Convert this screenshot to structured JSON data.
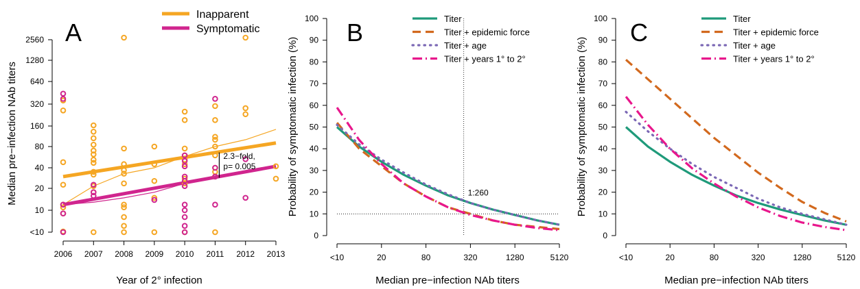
{
  "chart_data": [
    {
      "panel": "A",
      "type": "scatter",
      "xlabel": "Year of 2° infection",
      "ylabel": "Median pre−infection NAb titers",
      "x_ticks": [
        "2006",
        "2007",
        "2008",
        "2009",
        "2010",
        "2011",
        "2012",
        "2013"
      ],
      "y_ticks": [
        "<10",
        "10",
        "20",
        "40",
        "80",
        "160",
        "320",
        "640",
        "1280",
        "2560"
      ],
      "xlim": [
        2006,
        2013
      ],
      "legend_position": "top-right",
      "colors": {
        "inapparent": "#F5A623",
        "symptomatic": "#D0258E"
      },
      "series": [
        {
          "name": "Inapparent",
          "points": [
            [
              2006,
              5
            ],
            [
              2006,
              9
            ],
            [
              2006,
              11
            ],
            [
              2006,
              12
            ],
            [
              2006,
              23
            ],
            [
              2006,
              48
            ],
            [
              2006,
              260
            ],
            [
              2006,
              360
            ],
            [
              2007,
              "<10"
            ],
            [
              2007,
              18
            ],
            [
              2007,
              22
            ],
            [
              2007,
              32
            ],
            [
              2007,
              35
            ],
            [
              2007,
              47
            ],
            [
              2007,
              52
            ],
            [
              2007,
              62
            ],
            [
              2007,
              70
            ],
            [
              2007,
              85
            ],
            [
              2007,
              105
            ],
            [
              2007,
              130
            ],
            [
              2007,
              160
            ],
            [
              2008,
              "<10"
            ],
            [
              2008,
              6
            ],
            [
              2008,
              8
            ],
            [
              2008,
              11
            ],
            [
              2008,
              12
            ],
            [
              2008,
              24
            ],
            [
              2008,
              33
            ],
            [
              2008,
              37
            ],
            [
              2008,
              45
            ],
            [
              2008,
              75
            ],
            [
              2008,
              2800
            ],
            [
              2009,
              "<10"
            ],
            [
              2009,
              15
            ],
            [
              2009,
              26
            ],
            [
              2009,
              45
            ],
            [
              2009,
              80
            ],
            [
              2010,
              "<10"
            ],
            [
              2010,
              24
            ],
            [
              2010,
              28
            ],
            [
              2010,
              45
            ],
            [
              2010,
              52
            ],
            [
              2010,
              60
            ],
            [
              2010,
              75
            ],
            [
              2010,
              190
            ],
            [
              2010,
              250
            ],
            [
              2011,
              "<10"
            ],
            [
              2011,
              30
            ],
            [
              2011,
              35
            ],
            [
              2011,
              40
            ],
            [
              2011,
              60
            ],
            [
              2011,
              80
            ],
            [
              2011,
              100
            ],
            [
              2011,
              110
            ],
            [
              2011,
              190
            ],
            [
              2011,
              300
            ],
            [
              2012,
              230
            ],
            [
              2012,
              280
            ],
            [
              2012,
              2800
            ],
            [
              2013,
              28
            ],
            [
              2013,
              42
            ]
          ],
          "fit_line": [
            [
              2006,
              30
            ],
            [
              2013,
              90
            ]
          ],
          "trend_line": [
            [
              2006,
              12
            ],
            [
              2007,
              22
            ],
            [
              2008,
              33
            ],
            [
              2009,
              40
            ],
            [
              2010,
              58
            ],
            [
              2011,
              80
            ],
            [
              2012,
              100
            ],
            [
              2013,
              140
            ]
          ]
        },
        {
          "name": "Symptomatic",
          "points": [
            [
              2006,
              "<10"
            ],
            [
              2006,
              9
            ],
            [
              2006,
              12
            ],
            [
              2006,
              380
            ],
            [
              2006,
              450
            ],
            [
              2007,
              16
            ],
            [
              2007,
              18
            ],
            [
              2007,
              23
            ],
            [
              2009,
              14
            ],
            [
              2010,
              "<10"
            ],
            [
              2010,
              6
            ],
            [
              2010,
              8
            ],
            [
              2010,
              10
            ],
            [
              2010,
              12
            ],
            [
              2010,
              22
            ],
            [
              2010,
              26
            ],
            [
              2010,
              30
            ],
            [
              2010,
              42
            ],
            [
              2010,
              50
            ],
            [
              2010,
              60
            ],
            [
              2011,
              12
            ],
            [
              2011,
              30
            ],
            [
              2011,
              40
            ],
            [
              2011,
              380
            ],
            [
              2012,
              15
            ],
            [
              2012,
              53
            ]
          ],
          "fit_line": [
            [
              2006,
              12
            ],
            [
              2013,
              42
            ]
          ],
          "trend_line": [
            [
              2006,
              12
            ],
            [
              2007,
              13
            ],
            [
              2008,
              15
            ],
            [
              2009,
              18
            ],
            [
              2010,
              24
            ],
            [
              2011,
              30
            ],
            [
              2012,
              36
            ],
            [
              2013,
              42
            ]
          ]
        }
      ],
      "annotation": {
        "lines": [
          "2.3−fold,",
          "p= 0.005"
        ],
        "x": 2011,
        "y_from": 29,
        "y_to": 66
      }
    },
    {
      "panel": "B",
      "type": "line",
      "xlabel": "Median pre−infection NAb titers",
      "ylabel": "Probability of symptomatic infection (%)",
      "x_ticks": [
        "<10",
        "20",
        "80",
        "320",
        "1280",
        "5120"
      ],
      "ylim": [
        0,
        100
      ],
      "y_ticks": [
        0,
        10,
        20,
        30,
        40,
        50,
        60,
        70,
        80,
        90,
        100
      ],
      "legend_position": "top-right",
      "x_index": [
        0,
        0.5,
        1,
        1.5,
        2,
        2.5,
        3,
        3.5,
        4,
        4.5,
        5
      ],
      "reference": {
        "label": "1:260",
        "x_index": 2.85,
        "y": 10
      },
      "series": [
        {
          "name": "Titer",
          "color": "#1F9A7A",
          "dash": "solid",
          "values": [
            50,
            41,
            34,
            28,
            23,
            18.5,
            15,
            12,
            9.5,
            7,
            5
          ]
        },
        {
          "name": "Titer + epidemic force",
          "color": "#D2691E",
          "dash": "dashed",
          "values": [
            52,
            40,
            32,
            24,
            18,
            13,
            10,
            7,
            5,
            4,
            3
          ]
        },
        {
          "name": "Titer + age",
          "color": "#7B68B5",
          "dash": "dotted",
          "values": [
            51,
            42,
            35,
            29,
            23.5,
            19,
            15,
            12,
            9.5,
            7,
            5
          ]
        },
        {
          "name": "Titer + years 1° to 2°",
          "color": "#E8178C",
          "dash": "dashdot",
          "values": [
            59,
            44,
            33,
            24,
            18,
            13,
            9.5,
            7,
            5,
            3.5,
            2.5
          ]
        }
      ]
    },
    {
      "panel": "C",
      "type": "line",
      "xlabel": "Median pre−infection NAb titers",
      "ylabel": "Probability of symptomatic infection (%)",
      "x_ticks": [
        "<10",
        "20",
        "80",
        "320",
        "1280",
        "5120"
      ],
      "ylim": [
        0,
        100
      ],
      "y_ticks": [
        0,
        10,
        20,
        30,
        40,
        50,
        60,
        70,
        80,
        90,
        100
      ],
      "legend_position": "top-right",
      "x_index": [
        0,
        0.5,
        1,
        1.5,
        2,
        2.5,
        3,
        3.5,
        4,
        4.5,
        5
      ],
      "series": [
        {
          "name": "Titer",
          "color": "#1F9A7A",
          "dash": "solid",
          "values": [
            50,
            41,
            34,
            28,
            23,
            18.5,
            15,
            12,
            9.5,
            7,
            5
          ]
        },
        {
          "name": "Titer + epidemic force",
          "color": "#D2691E",
          "dash": "dashed",
          "values": [
            81,
            72,
            63,
            54,
            45,
            37,
            29,
            22,
            15.5,
            10.5,
            6.5
          ]
        },
        {
          "name": "Titer + age",
          "color": "#7B68B5",
          "dash": "dotted",
          "values": [
            57,
            48,
            40,
            33,
            27,
            22,
            17,
            13,
            10,
            7.5,
            5
          ]
        },
        {
          "name": "Titer + years 1° to 2°",
          "color": "#E8178C",
          "dash": "dashdot",
          "values": [
            64,
            51,
            40,
            31,
            24,
            18,
            13,
            9,
            6,
            4,
            2.5
          ]
        }
      ]
    }
  ],
  "panels": {
    "a_letter": "A",
    "b_letter": "B",
    "c_letter": "C"
  }
}
